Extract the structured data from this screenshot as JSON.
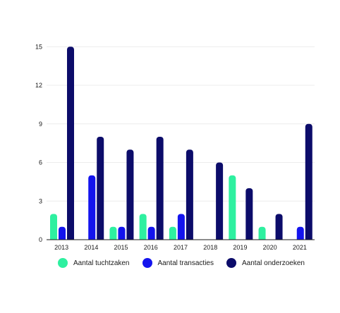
{
  "chart_data": {
    "type": "bar",
    "categories": [
      "2013",
      "2014",
      "2015",
      "2016",
      "2017",
      "2018",
      "2019",
      "2020",
      "2021"
    ],
    "series": [
      {
        "name": "Aantal tuchtzaken",
        "color": "#2ef0a0",
        "values": [
          2,
          0,
          1,
          2,
          1,
          0,
          5,
          1,
          0
        ]
      },
      {
        "name": "Aantal transacties",
        "color": "#1414ee",
        "values": [
          1,
          5,
          1,
          1,
          2,
          0,
          0,
          0,
          1
        ]
      },
      {
        "name": "Aantal onderzoeken",
        "color": "#0c0c6a",
        "values": [
          15,
          8,
          7,
          8,
          7,
          6,
          4,
          2,
          9
        ]
      }
    ],
    "yticks": [
      0,
      3,
      6,
      9,
      12,
      15
    ],
    "ylim": [
      0,
      16
    ],
    "grid": true,
    "legend_position": "bottom",
    "xlabel": "",
    "ylabel": "",
    "title": ""
  }
}
